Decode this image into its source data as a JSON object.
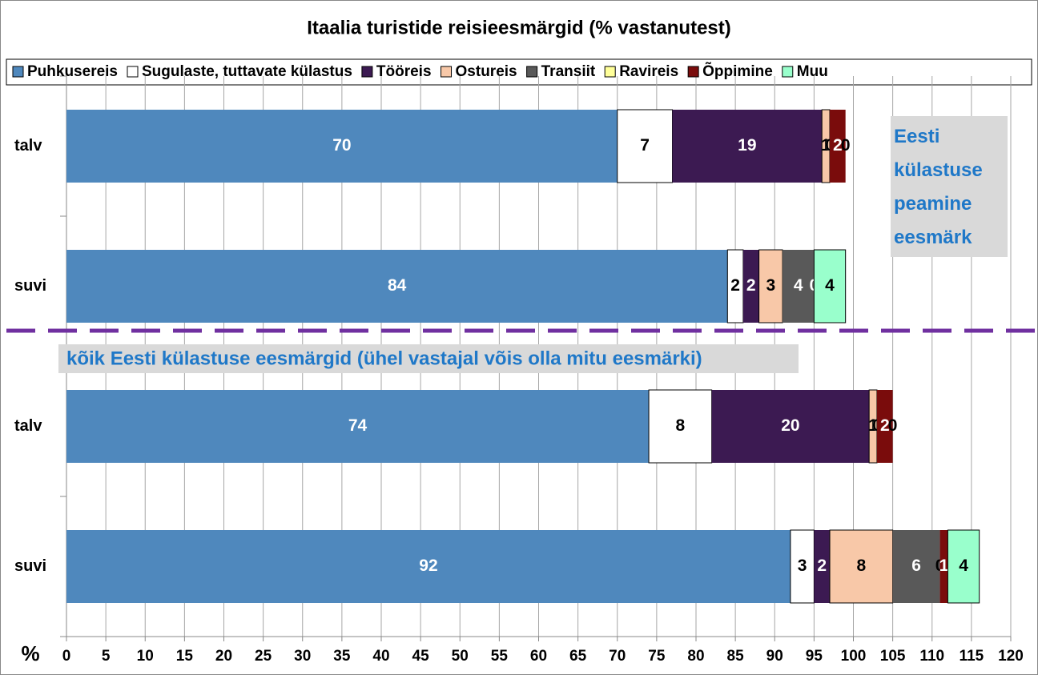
{
  "chart_data": {
    "type": "stacked_barh",
    "title": "Itaalia turistide reisieesmärgid (% vastanutest)",
    "x_label": "%",
    "categories": [
      "talv",
      "suvi",
      "talv",
      "suvi"
    ],
    "series": [
      {
        "name": "Puhkusereis",
        "color": "#4f88bd",
        "values": [
          70,
          84,
          74,
          92
        ]
      },
      {
        "name": "Sugulaste, tuttavate külastus",
        "color": "#ffffff",
        "values": [
          7,
          2,
          8,
          3
        ]
      },
      {
        "name": "Tööreis",
        "color": "#3c1a52",
        "values": [
          19,
          2,
          20,
          2
        ]
      },
      {
        "name": "Ostureis",
        "color": "#f8c8a8",
        "values": [
          1,
          3,
          1,
          8
        ]
      },
      {
        "name": "Transiit",
        "color": "#595959",
        "values": [
          0,
          4,
          0,
          6
        ]
      },
      {
        "name": "Ravireis",
        "color": "#ffff99",
        "values": [
          0,
          0,
          0,
          0
        ]
      },
      {
        "name": "Õppimine",
        "color": "#7a0c0c",
        "values": [
          2,
          0,
          2,
          1
        ]
      },
      {
        "name": "Muu",
        "color": "#99ffcc",
        "values": [
          0,
          4,
          0,
          4
        ]
      }
    ],
    "xlim": [
      0,
      120
    ],
    "xticks": [
      0,
      5,
      10,
      15,
      20,
      25,
      30,
      35,
      40,
      45,
      50,
      55,
      60,
      65,
      70,
      75,
      80,
      85,
      90,
      95,
      100,
      105,
      110,
      115,
      120
    ],
    "grid": true,
    "legend": "top",
    "annotations": [
      "Eesti külastuse peamine eesmärk",
      "kõik Eesti külastuse eesmärgid (ühel vastajal võis olla mitu eesmärki)"
    ]
  }
}
